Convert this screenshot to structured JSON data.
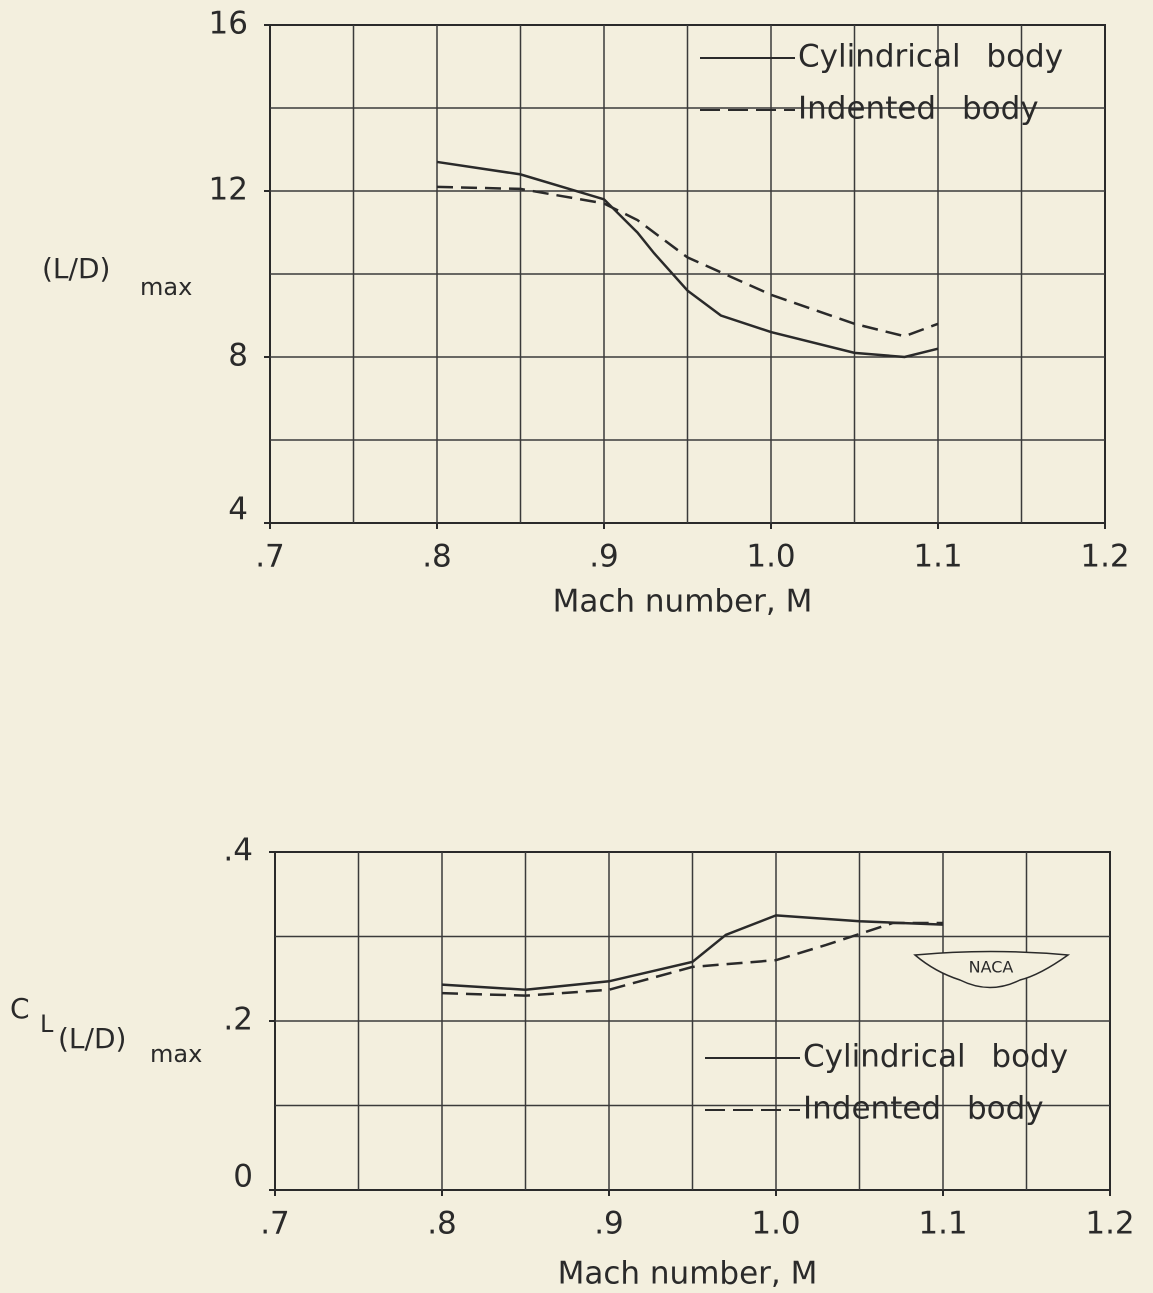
{
  "chart_data": [
    {
      "type": "line",
      "ylabel": [
        "(L/D)",
        "max"
      ],
      "xlabel": "Mach number, M",
      "xlim": [
        0.7,
        1.2
      ],
      "xticks": [
        {
          "value": 0.7,
          "label": ".7"
        },
        {
          "value": 0.8,
          "label": ".8"
        },
        {
          "value": 0.9,
          "label": ".9"
        },
        {
          "value": 1.0,
          "label": "1.0"
        },
        1.1,
        1.2
      ],
      "ylim": [
        4,
        16
      ],
      "yticks": [
        4,
        8,
        12,
        16
      ],
      "xgrid": [
        0.75,
        0.8,
        0.85,
        0.9,
        0.95,
        1.0,
        1.05,
        1.1,
        1.15
      ],
      "ygrid": [
        6,
        8,
        10,
        12,
        14
      ],
      "legend": "upper right",
      "series": [
        {
          "name": "Cylindrical body",
          "color": "#2a2a2a",
          "dash": "solid",
          "x": [
            0.8,
            0.85,
            0.9,
            0.92,
            0.93,
            0.95,
            0.97,
            1.0,
            1.05,
            1.08,
            1.1
          ],
          "values": [
            12.7,
            12.4,
            11.8,
            11.0,
            10.5,
            9.6,
            9.0,
            8.6,
            8.1,
            8.0,
            8.2
          ]
        },
        {
          "name": "Indented body",
          "color": "#2a2a2a",
          "dash": "dashed",
          "x": [
            0.8,
            0.85,
            0.9,
            0.92,
            0.95,
            1.0,
            1.05,
            1.08,
            1.1
          ],
          "values": [
            12.1,
            12.05,
            11.7,
            11.3,
            10.4,
            9.5,
            8.8,
            8.5,
            8.8
          ]
        }
      ]
    },
    {
      "type": "line",
      "ylabel": [
        "C",
        "L",
        "(L/D)",
        "max"
      ],
      "xlabel": "Mach number, M",
      "logo": "NACA",
      "xlim": [
        0.7,
        1.2
      ],
      "xticks": [
        {
          "value": 0.7,
          "label": ".7"
        },
        {
          "value": 0.8,
          "label": ".8"
        },
        {
          "value": 0.9,
          "label": ".9"
        },
        {
          "value": 1.0,
          "label": "1.0"
        },
        1.1,
        1.2
      ],
      "ylim": [
        0,
        0.4
      ],
      "yticks": [
        0,
        {
          "value": 0.2,
          "label": ".2"
        },
        {
          "value": 0.4,
          "label": ".4"
        }
      ],
      "xgrid": [
        0.75,
        0.8,
        0.85,
        0.9,
        0.95,
        1.0,
        1.05,
        1.1,
        1.15
      ],
      "ygrid": [
        0.1,
        0.2,
        0.3
      ],
      "legend": "lower right",
      "series": [
        {
          "name": "Cylindrical body",
          "color": "#2a2a2a",
          "dash": "solid",
          "x": [
            0.8,
            0.85,
            0.9,
            0.95,
            0.97,
            1.0,
            1.05,
            1.1
          ],
          "values": [
            0.243,
            0.237,
            0.247,
            0.27,
            0.302,
            0.325,
            0.318,
            0.314
          ]
        },
        {
          "name": "Indented body",
          "color": "#2a2a2a",
          "dash": "dashed",
          "x": [
            0.8,
            0.85,
            0.9,
            0.95,
            1.0,
            1.03,
            1.07,
            1.1
          ],
          "values": [
            0.233,
            0.23,
            0.237,
            0.264,
            0.272,
            0.29,
            0.316,
            0.316
          ]
        }
      ]
    }
  ]
}
